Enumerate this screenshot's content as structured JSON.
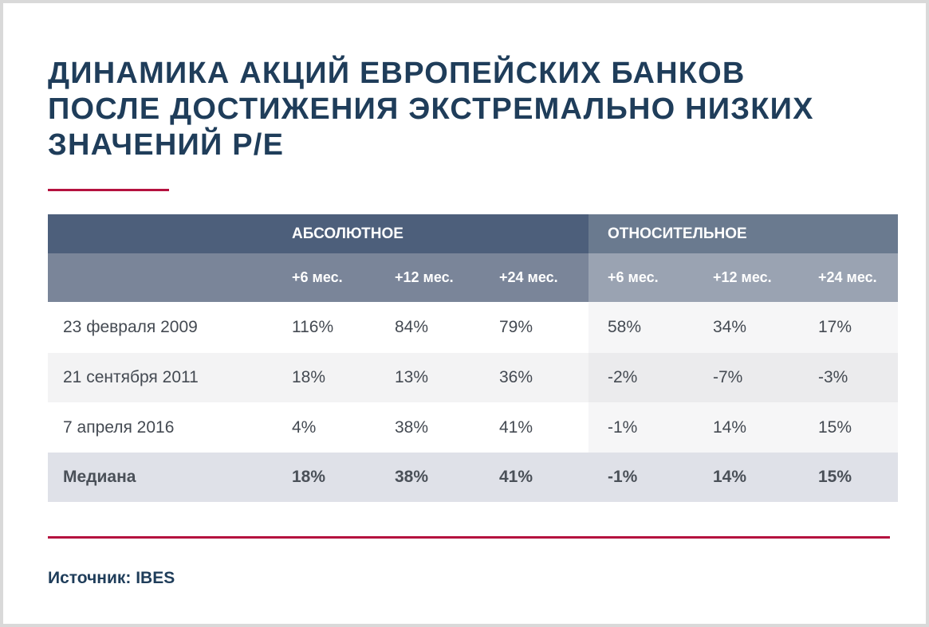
{
  "title_lines": [
    "ДИНАМИКА АКЦИЙ ЕВРОПЕЙСКИХ БАНКОВ",
    "ПОСЛЕ ДОСТИЖЕНИЯ ЭКСТРЕМАЛЬНО НИЗКИХ",
    "ЗНАЧЕНИЙ P/E"
  ],
  "colors": {
    "title": "#1f3d5a",
    "accent": "#b5123f",
    "absolute_header": "#4d5f7b",
    "relative_header": "#6a7a8f"
  },
  "table": {
    "groups": {
      "absolute": "АБСОЛЮТНОЕ",
      "relative": "ОТНОСИТЕЛЬНОЕ"
    },
    "periods": [
      "+6 мес.",
      "+12 мес.",
      "+24 мес.",
      "+6 мес.",
      "+12 мес.",
      "+24 мес."
    ],
    "rows": [
      {
        "label": "23 февраля 2009",
        "values": [
          "116%",
          "84%",
          "79%",
          "58%",
          "34%",
          "17%"
        ]
      },
      {
        "label": "21 сентября 2011",
        "values": [
          "18%",
          "13%",
          "36%",
          "-2%",
          "-7%",
          "-3%"
        ]
      },
      {
        "label": "7 апреля 2016",
        "values": [
          "4%",
          "38%",
          "41%",
          "-1%",
          "14%",
          "15%"
        ]
      },
      {
        "label": "Медиана",
        "values": [
          "18%",
          "38%",
          "41%",
          "-1%",
          "14%",
          "15%"
        ]
      }
    ]
  },
  "source": "Источник: IBES"
}
